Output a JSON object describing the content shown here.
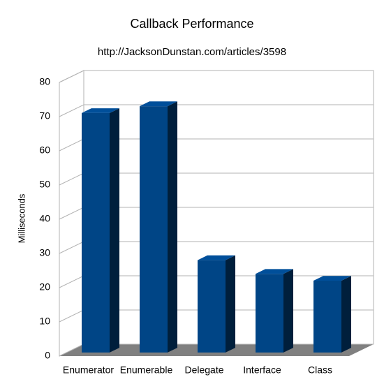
{
  "chart_data": {
    "type": "bar",
    "title": "Callback Performance",
    "subtitle": "http://JacksonDunstan.com/articles/3598",
    "y_label": "Milliseconds",
    "categories": [
      "Enumerator",
      "Enumerable",
      "Delegate",
      "Interface",
      "Class"
    ],
    "values": [
      70,
      72,
      27,
      23,
      21
    ],
    "color": "#004586",
    "ylim": [
      0,
      80
    ],
    "yticks": [
      0,
      10,
      20,
      30,
      40,
      50,
      60,
      70,
      80
    ],
    "grid": true
  }
}
